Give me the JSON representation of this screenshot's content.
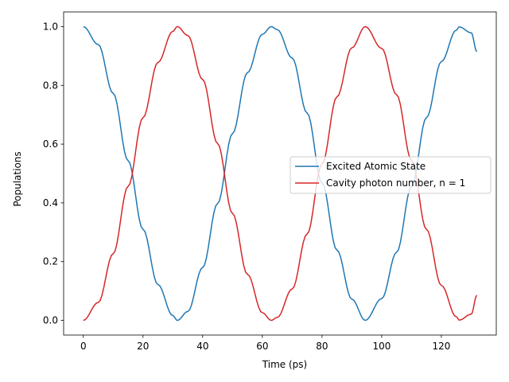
{
  "chart_data": {
    "type": "line",
    "title": "",
    "xlabel": "Time (ps)",
    "ylabel": "Populations",
    "xlim": [
      -6.6,
      138.4
    ],
    "ylim": [
      -0.05,
      1.05
    ],
    "x_ticks": [
      0,
      20,
      40,
      60,
      80,
      100,
      120
    ],
    "y_ticks": [
      0.0,
      0.2,
      0.4,
      0.6,
      0.8,
      1.0
    ],
    "x_tick_labels": [
      "0",
      "20",
      "40",
      "60",
      "80",
      "100",
      "120"
    ],
    "y_tick_labels": [
      "0.0",
      "0.2",
      "0.4",
      "0.6",
      "0.8",
      "1.0"
    ],
    "grid": false,
    "legend_position": "center-right",
    "series": [
      {
        "name": "Excited Atomic State",
        "color": "#1f77b4",
        "x": [
          0,
          5,
          10,
          15,
          20,
          25,
          30,
          31.5,
          35,
          40,
          45,
          50,
          55,
          60,
          63,
          65,
          70,
          75,
          80,
          85,
          90,
          94.5,
          100,
          105,
          110,
          115,
          120,
          125,
          126,
          130,
          131.9
        ],
        "y": [
          1.0,
          0.939,
          0.773,
          0.544,
          0.31,
          0.122,
          0.016,
          0.0,
          0.03,
          0.18,
          0.398,
          0.636,
          0.843,
          0.974,
          1.0,
          0.99,
          0.893,
          0.706,
          0.468,
          0.239,
          0.072,
          0.0,
          0.074,
          0.232,
          0.455,
          0.69,
          0.881,
          0.988,
          0.999,
          0.979,
          0.915
        ]
      },
      {
        "name": "Cavity photon number, n = 1",
        "color": "#d62728",
        "x": [
          0,
          5,
          10,
          15,
          20,
          25,
          30,
          31.5,
          35,
          40,
          45,
          50,
          55,
          60,
          63,
          65,
          70,
          75,
          80,
          85,
          90,
          94.5,
          100,
          105,
          110,
          115,
          120,
          125,
          126,
          130,
          131.9
        ],
        "y": [
          0.0,
          0.061,
          0.227,
          0.456,
          0.69,
          0.878,
          0.984,
          1.0,
          0.97,
          0.82,
          0.602,
          0.364,
          0.157,
          0.026,
          0.0,
          0.01,
          0.107,
          0.294,
          0.532,
          0.761,
          0.928,
          1.0,
          0.926,
          0.768,
          0.545,
          0.31,
          0.119,
          0.012,
          0.001,
          0.021,
          0.085
        ]
      }
    ]
  }
}
